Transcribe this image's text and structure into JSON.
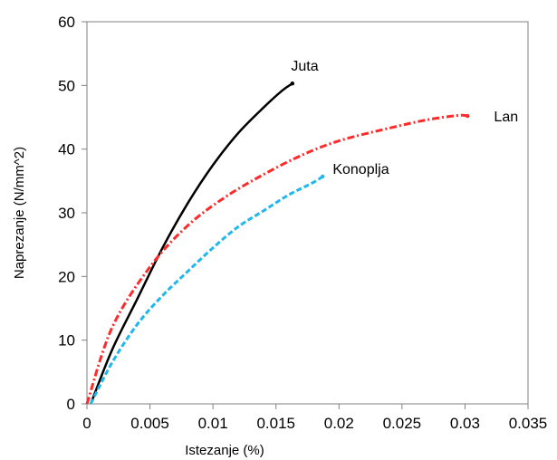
{
  "chart_data": {
    "type": "line",
    "title": "",
    "xlabel": "Istezanje (%)",
    "ylabel": "Naprezanje (N/mm^2)",
    "xlim": [
      0,
      0.035
    ],
    "ylim": [
      0,
      60
    ],
    "x_ticks": [
      "0",
      "0.005",
      "0.01",
      "0.015",
      "0.02",
      "0.025",
      "0.03",
      "0.035"
    ],
    "y_ticks": [
      "0",
      "10",
      "20",
      "30",
      "40",
      "50",
      "60"
    ],
    "grid": false,
    "legend": "none",
    "series": [
      {
        "name": "Juta",
        "color": "#000000",
        "style": "solid",
        "x": [
          0.0003,
          0.002,
          0.004,
          0.006,
          0.008,
          0.01,
          0.012,
          0.014,
          0.0155,
          0.0163
        ],
        "y": [
          0,
          8.5,
          16.5,
          24.5,
          31.5,
          37.5,
          42.5,
          46.5,
          49.2,
          50.3
        ]
      },
      {
        "name": "Lan",
        "color": "#ff2a2a",
        "style": "dash-dot",
        "x": [
          0,
          0.002,
          0.005,
          0.008,
          0.011,
          0.014,
          0.017,
          0.02,
          0.024,
          0.027,
          0.0295,
          0.0302
        ],
        "y": [
          0,
          12.0,
          21.5,
          28.0,
          32.5,
          36.0,
          39.0,
          41.3,
          43.3,
          44.6,
          45.3,
          45.2
        ]
      },
      {
        "name": "Konoplja",
        "color": "#1fb7ee",
        "style": "dashed",
        "x": [
          0.0003,
          0.002,
          0.004,
          0.006,
          0.008,
          0.01,
          0.012,
          0.014,
          0.016,
          0.018,
          0.0187
        ],
        "y": [
          0,
          6.5,
          12.5,
          17.0,
          20.8,
          24.5,
          27.8,
          30.3,
          32.8,
          34.8,
          35.7
        ]
      }
    ],
    "annotations": [
      {
        "text": "Juta",
        "x": 0.0162,
        "y": 53.2
      },
      {
        "text": "Lan",
        "x": 0.0323,
        "y": 45.2
      },
      {
        "text": "Konoplja",
        "x": 0.0195,
        "y": 37.0
      }
    ]
  }
}
